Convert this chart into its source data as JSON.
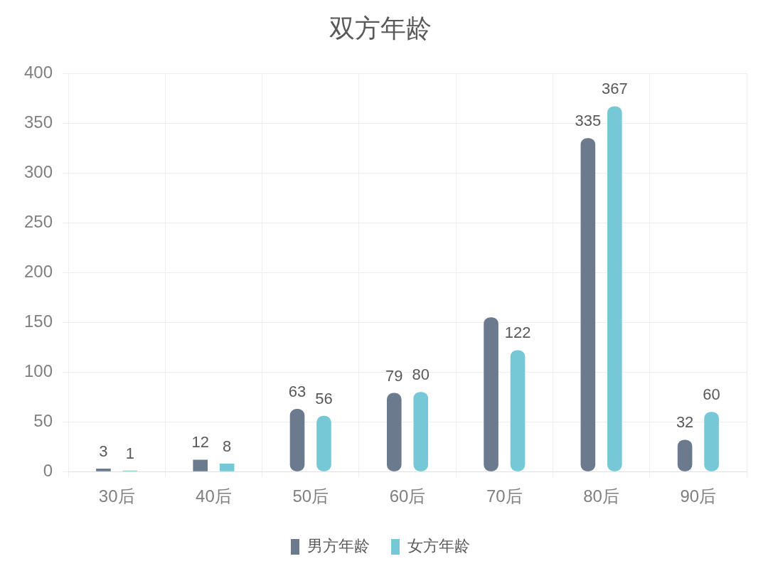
{
  "chart_data": {
    "type": "bar",
    "title": "双方年龄",
    "categories": [
      "30后",
      "40后",
      "50后",
      "60后",
      "70后",
      "80后",
      "90后"
    ],
    "series": [
      {
        "name": "男方年龄",
        "color": "#6b7a8c",
        "values": [
          3,
          12,
          63,
          79,
          155,
          335,
          32
        ],
        "value_labels": [
          "3",
          "12",
          "63",
          "79",
          null,
          "335",
          "32"
        ]
      },
      {
        "name": "女方年龄",
        "color": "#76c8d6",
        "values": [
          1,
          8,
          56,
          80,
          122,
          367,
          60
        ],
        "value_labels": [
          "1",
          "8",
          "56",
          "80",
          "122",
          "367",
          "60"
        ]
      }
    ],
    "ylim": [
      0,
      400
    ],
    "yticks": [
      0,
      50,
      100,
      150,
      200,
      250,
      300,
      350,
      400
    ],
    "grid": true,
    "legend": "bottom"
  }
}
